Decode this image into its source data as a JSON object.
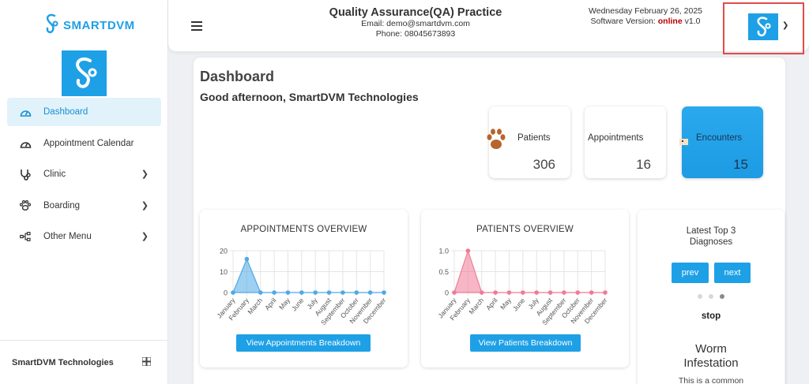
{
  "brand": {
    "name": "SMARTDVM"
  },
  "sidebar": {
    "items": [
      {
        "label": "Dashboard",
        "icon": "gauge-icon",
        "active": true
      },
      {
        "label": "Appointment Calendar",
        "icon": "gauge-icon"
      },
      {
        "label": "Clinic",
        "icon": "stethoscope-icon"
      },
      {
        "label": "Boarding",
        "icon": "paw-icon"
      },
      {
        "label": "Other Menu",
        "icon": "sitemap-icon"
      }
    ],
    "footer": "SmartDVM Technologies"
  },
  "header": {
    "practice_name": "Quality Assurance(QA) Practice",
    "email": "Email: demo@smartdvm.com",
    "phone": "Phone: 08045673893",
    "date": "Wednesday February 26, 2025",
    "version_prefix": "Software Version:",
    "version_status": "online",
    "version_number": "v1.0"
  },
  "main": {
    "title": "Dashboard",
    "greeting": "Good afternoon, SmartDVM Technologies"
  },
  "stats": {
    "patients": {
      "label": "Patients",
      "value": "306"
    },
    "appointments": {
      "label": "Appointments",
      "value": "16"
    },
    "encounters": {
      "label": "Encounters",
      "value": "15"
    }
  },
  "appointments_card": {
    "title": "APPOINTMENTS OVERVIEW",
    "button": "View Appointments Breakdown"
  },
  "patients_card": {
    "title": "PATIENTS OVERVIEW",
    "button": "View Patients Breakdown"
  },
  "diagnoses": {
    "title_line1": "Latest Top 3",
    "title_line2": "Diagnoses",
    "prev": "prev",
    "next": "next",
    "stop": "stop",
    "name_line1": "Worm",
    "name_line2": "Infestation",
    "description": "This is a common"
  },
  "colors": {
    "accent": "#1ea0e6",
    "appointments_series": "#4fa9e6",
    "patients_series": "#f07a95"
  },
  "chart_data": [
    {
      "type": "area",
      "title": "APPOINTMENTS OVERVIEW",
      "categories": [
        "January",
        "February",
        "March",
        "April",
        "May",
        "June",
        "July",
        "August",
        "September",
        "October",
        "November",
        "December"
      ],
      "values": [
        0,
        16,
        0,
        0,
        0,
        0,
        0,
        0,
        0,
        0,
        0,
        0
      ],
      "yticks": [
        "0",
        "10",
        "20"
      ],
      "ylim": [
        0,
        20
      ],
      "grid": true
    },
    {
      "type": "area",
      "title": "PATIENTS OVERVIEW",
      "categories": [
        "January",
        "February",
        "March",
        "April",
        "May",
        "June",
        "July",
        "August",
        "September",
        "October",
        "November",
        "December"
      ],
      "values": [
        0,
        1.0,
        0,
        0,
        0,
        0,
        0,
        0,
        0,
        0,
        0,
        0
      ],
      "yticks": [
        "0",
        "0.5",
        "1.0"
      ],
      "ylim": [
        0,
        1
      ],
      "grid": true
    }
  ]
}
